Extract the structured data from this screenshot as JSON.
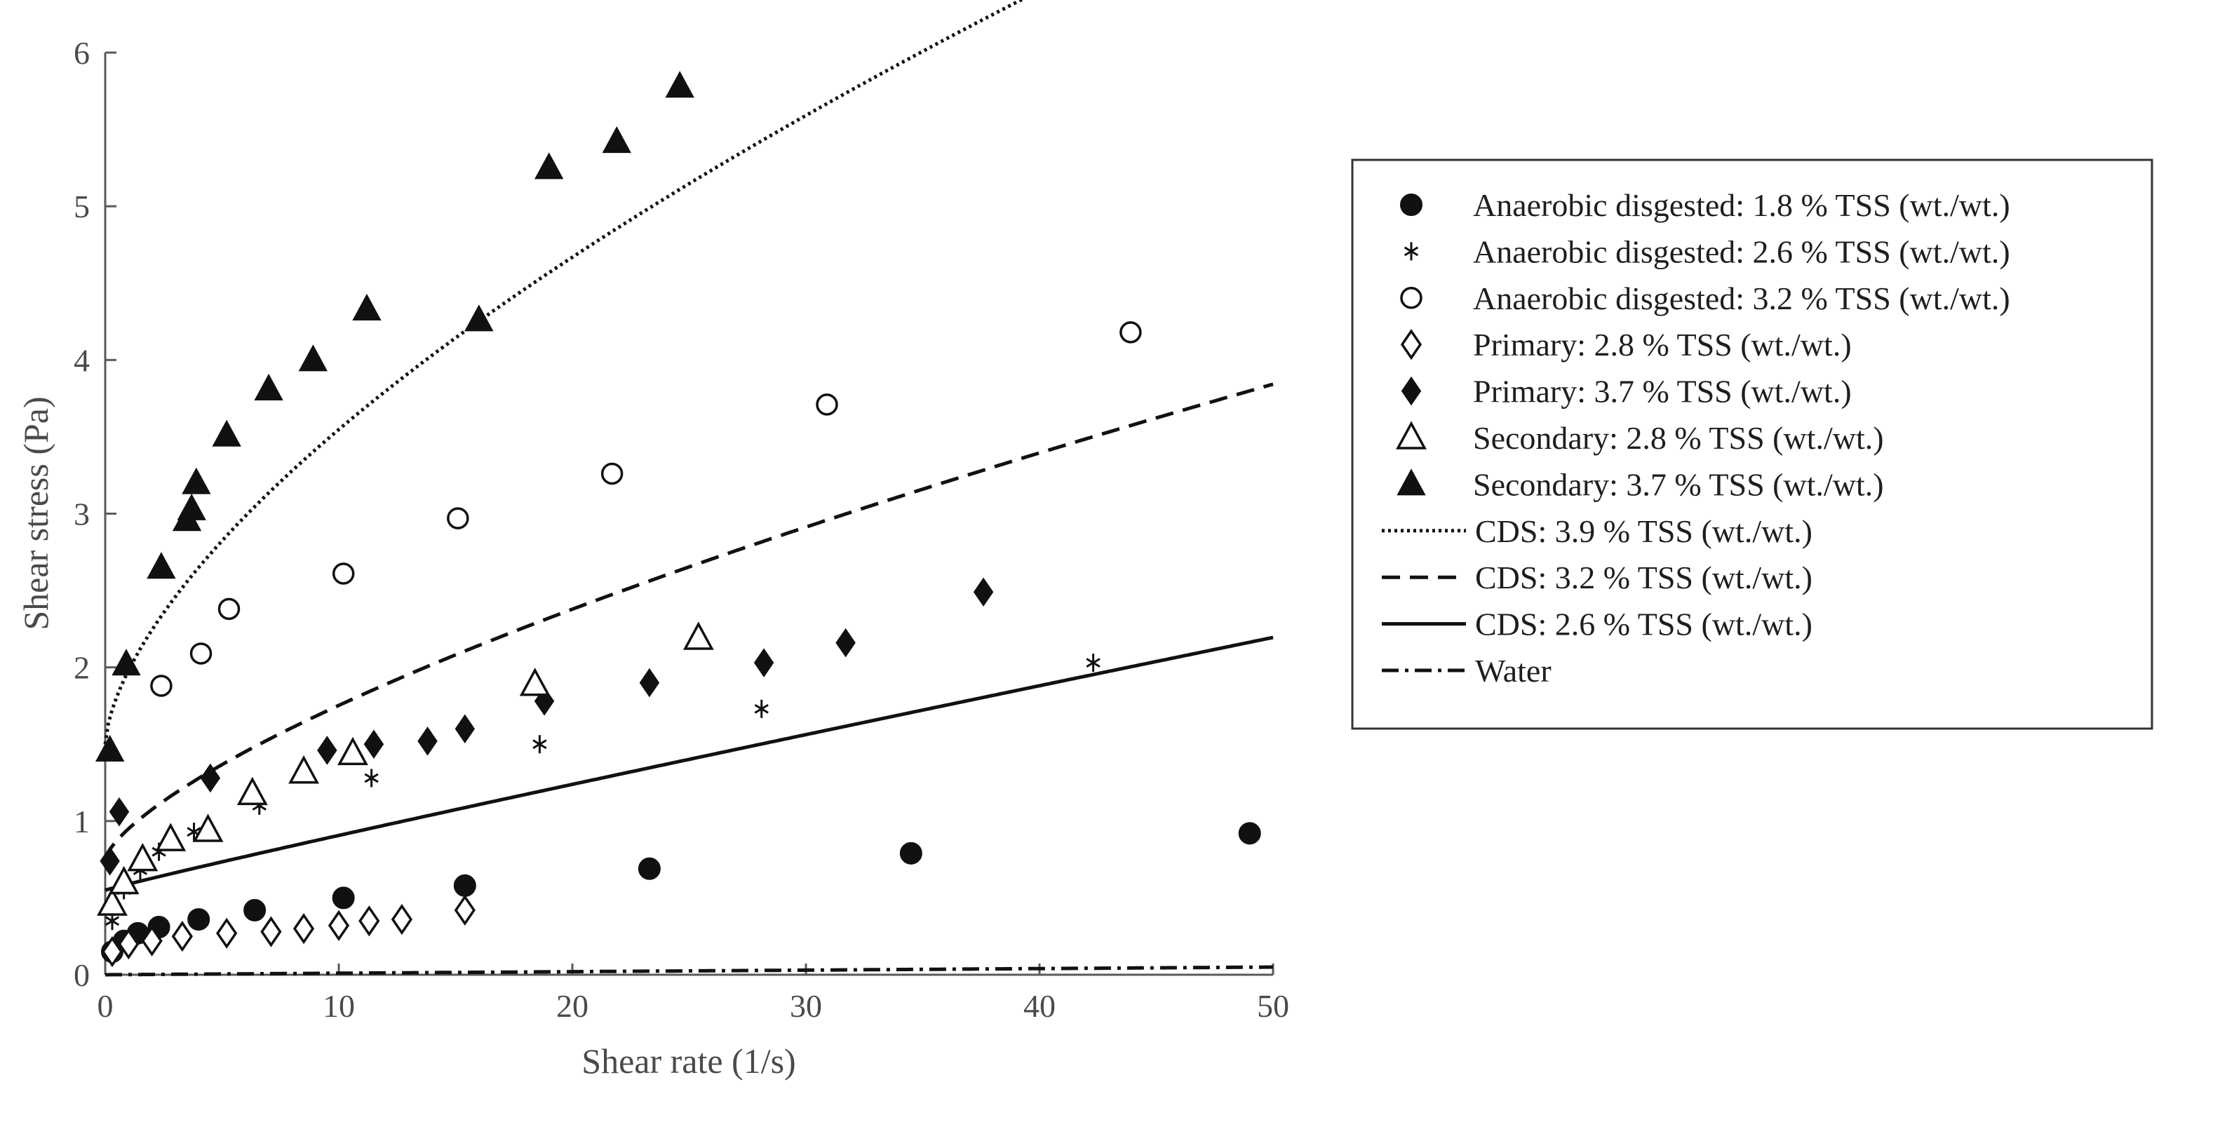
{
  "chart_data": {
    "type": "scatter",
    "title": "",
    "xlabel": "Shear rate (1/s)",
    "ylabel": "Shear stress (Pa)",
    "xlim": [
      0,
      50
    ],
    "ylim": [
      0,
      6
    ],
    "xticks": [
      0,
      10,
      20,
      30,
      40,
      50
    ],
    "yticks": [
      0,
      1,
      2,
      3,
      4,
      5,
      6
    ],
    "grid": false,
    "legend_position": "right",
    "series": [
      {
        "name": "Anaerobic disgested: 1.8 % TSS (wt./wt.)",
        "marker": "circle-filled",
        "x": [
          0.3,
          0.8,
          1.4,
          2.3,
          4.0,
          6.4,
          10.2,
          15.4,
          23.3,
          34.5,
          49.0
        ],
        "y": [
          0.15,
          0.22,
          0.27,
          0.31,
          0.36,
          0.42,
          0.5,
          0.58,
          0.69,
          0.79,
          0.92
        ]
      },
      {
        "name": "Anaerobic disgested: 2.6 % TSS (wt./wt.)",
        "marker": "asterisk",
        "x": [
          0.3,
          0.8,
          1.5,
          2.3,
          3.8,
          6.6,
          11.4,
          18.6,
          28.1,
          42.3
        ],
        "y": [
          0.35,
          0.55,
          0.68,
          0.8,
          0.93,
          1.1,
          1.28,
          1.5,
          1.73,
          2.03
        ]
      },
      {
        "name": "Anaerobic disgested: 3.2 % TSS (wt./wt.)",
        "marker": "circle-open",
        "x": [
          2.4,
          4.1,
          5.3,
          10.2,
          15.1,
          21.7,
          30.9,
          43.9
        ],
        "y": [
          1.88,
          2.09,
          2.38,
          2.61,
          2.97,
          3.26,
          3.71,
          4.18
        ]
      },
      {
        "name": "Primary: 2.8 % TSS (wt./wt.)",
        "marker": "diamond-open",
        "x": [
          0.3,
          1.0,
          2.0,
          3.3,
          5.2,
          7.1,
          8.5,
          10.0,
          11.3,
          12.7,
          15.4
        ],
        "y": [
          0.15,
          0.2,
          0.22,
          0.25,
          0.27,
          0.28,
          0.3,
          0.32,
          0.35,
          0.36,
          0.42
        ]
      },
      {
        "name": "Primary: 3.7 % TSS (wt./wt.)",
        "marker": "diamond-filled",
        "x": [
          0.2,
          0.6,
          4.5,
          9.5,
          11.5,
          13.8,
          15.4,
          18.8,
          23.3,
          28.2,
          31.7,
          37.6
        ],
        "y": [
          0.74,
          1.06,
          1.28,
          1.46,
          1.5,
          1.52,
          1.6,
          1.78,
          1.9,
          2.03,
          2.16,
          2.49
        ]
      },
      {
        "name": "Secondary: 2.8 % TSS (wt./wt.)",
        "marker": "triangle-open",
        "x": [
          0.3,
          0.8,
          1.6,
          2.8,
          4.4,
          6.3,
          8.5,
          10.6,
          18.4,
          25.4
        ],
        "y": [
          0.46,
          0.6,
          0.75,
          0.88,
          0.94,
          1.18,
          1.32,
          1.44,
          1.89,
          2.19
        ]
      },
      {
        "name": "Secondary: 3.7 % TSS (wt./wt.)",
        "marker": "triangle-filled",
        "x": [
          0.2,
          0.9,
          2.4,
          3.5,
          3.7,
          3.9,
          5.2,
          7.0,
          8.9,
          11.2,
          16.0,
          19.0,
          21.9,
          24.6
        ],
        "y": [
          1.46,
          2.02,
          2.65,
          2.96,
          3.03,
          3.2,
          3.51,
          3.81,
          4.0,
          4.33,
          4.26,
          5.25,
          5.42,
          5.78
        ]
      },
      {
        "name": "CDS: 3.9 % TSS (wt./wt.)",
        "line": "dotted",
        "model": {
          "form": "herschel-bulkley",
          "tau0": 1.5,
          "k": 0.48,
          "n": 0.63
        }
      },
      {
        "name": "CDS: 3.2 % TSS (wt./wt.)",
        "line": "dashed",
        "model": {
          "form": "herschel-bulkley",
          "tau0": 0.75,
          "k": 0.2,
          "n": 0.7
        }
      },
      {
        "name": "CDS: 2.6 % TSS (wt./wt.)",
        "line": "solid",
        "model": {
          "form": "herschel-bulkley",
          "tau0": 0.55,
          "k": 0.04,
          "n": 0.95
        }
      },
      {
        "name": "Water",
        "line": "dashdot",
        "model": {
          "form": "linear",
          "intercept": 0.0,
          "slope": 0.001
        }
      }
    ]
  }
}
